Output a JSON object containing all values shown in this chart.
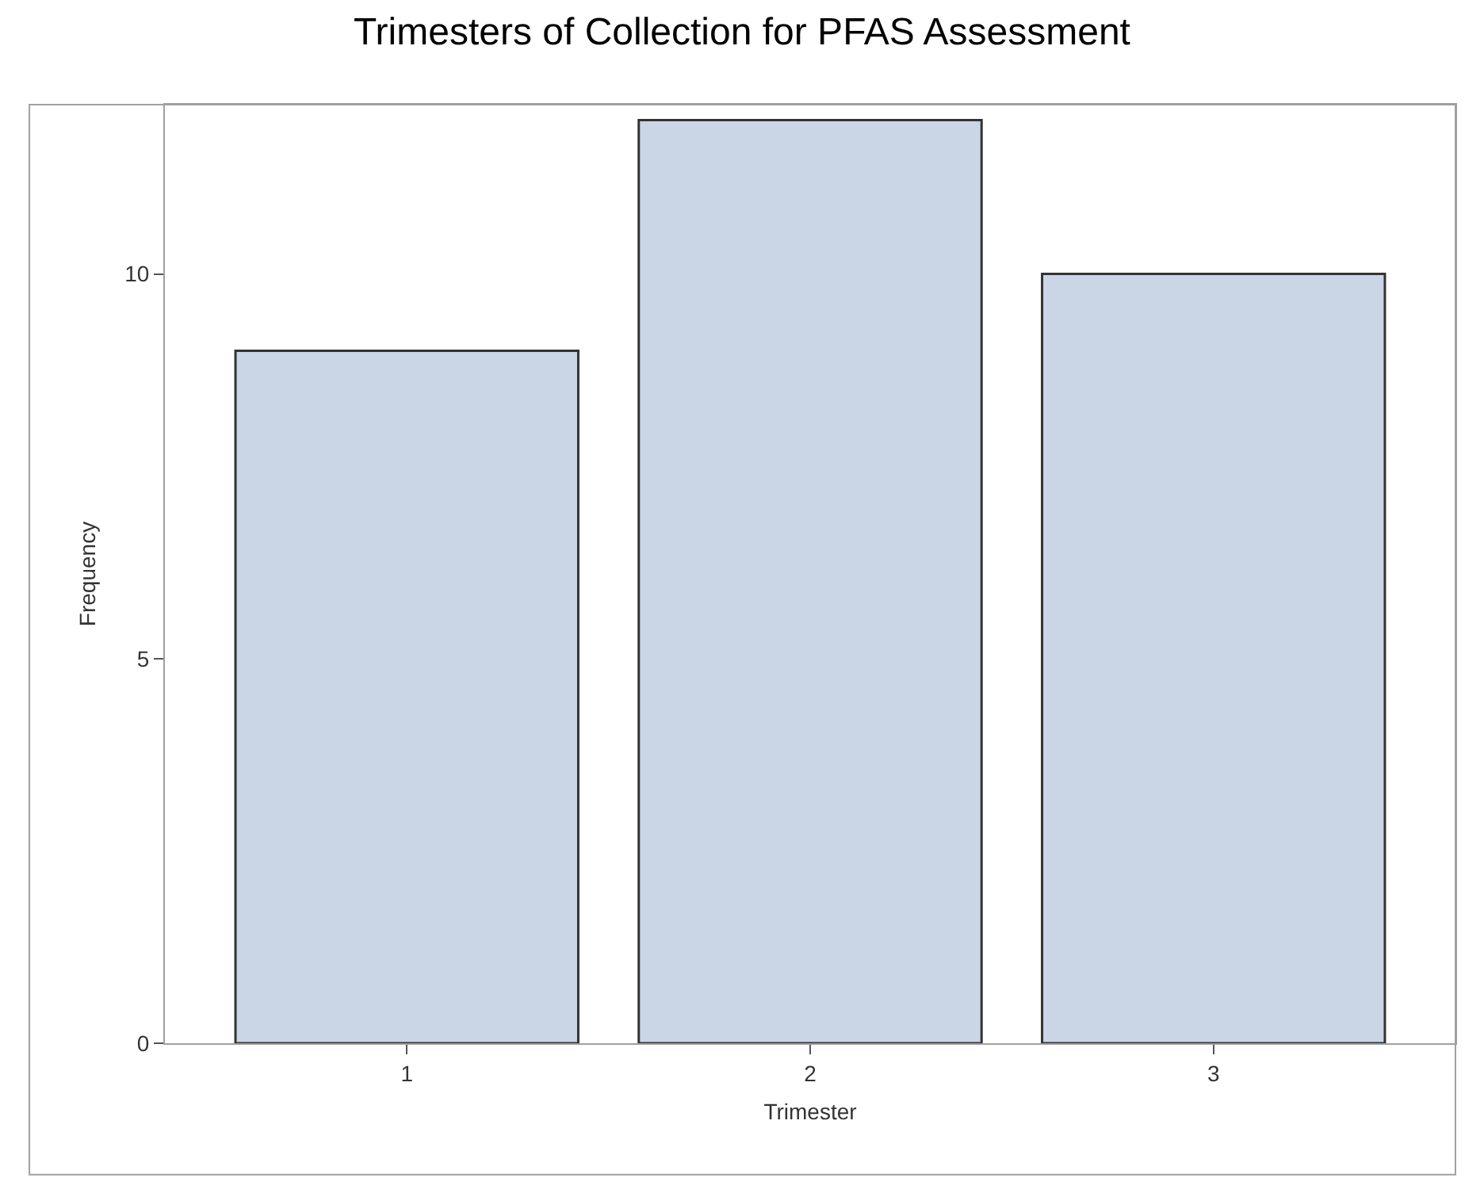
{
  "chart_data": {
    "type": "bar",
    "title": "Trimesters of Collection for PFAS Assessment",
    "xlabel": "Trimester",
    "ylabel": "Frequency",
    "categories": [
      "1",
      "2",
      "3"
    ],
    "values": [
      9,
      12,
      10
    ],
    "color": "#cad5e5",
    "ylim": [
      0,
      12.2
    ],
    "yticks": [
      0,
      5,
      10
    ],
    "grid": false,
    "legend": false
  }
}
